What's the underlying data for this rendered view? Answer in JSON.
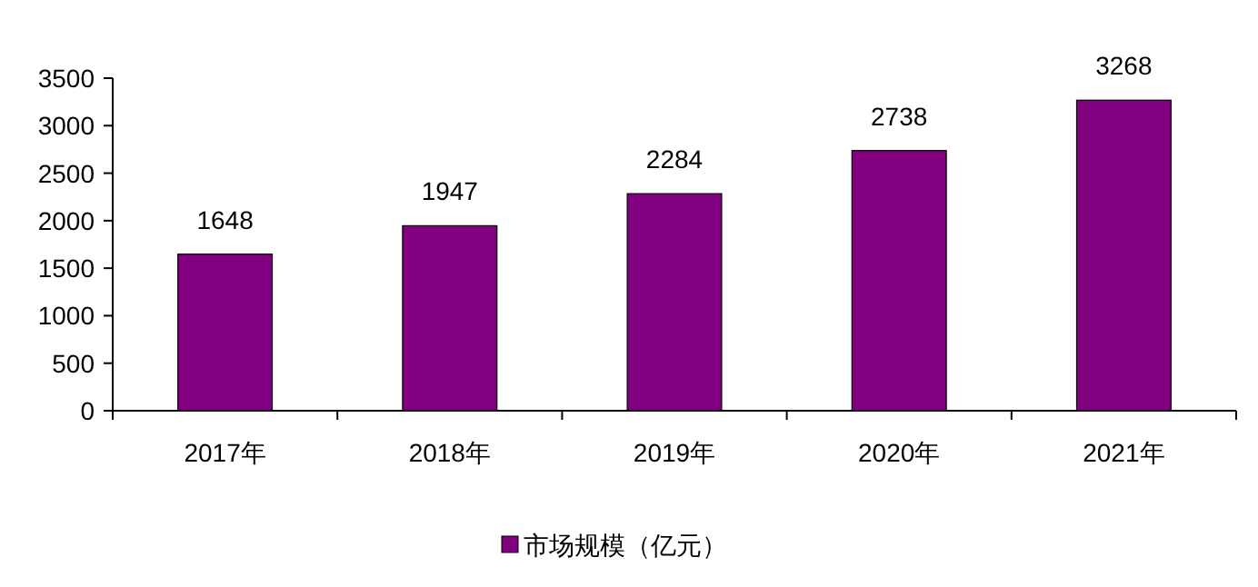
{
  "chart_data": {
    "type": "bar",
    "categories": [
      "2017年",
      "2018年",
      "2019年",
      "2020年",
      "2021年"
    ],
    "series": [
      {
        "name": "市场规模（亿元）",
        "color": "#800080",
        "values": [
          1648,
          1947,
          2284,
          2738,
          3268
        ]
      }
    ],
    "ylim": [
      0,
      3500
    ],
    "yticks": [
      0,
      500,
      1000,
      1500,
      2000,
      2500,
      3000,
      3500
    ],
    "data_labels": true,
    "legend": "bottom",
    "grid": false
  }
}
